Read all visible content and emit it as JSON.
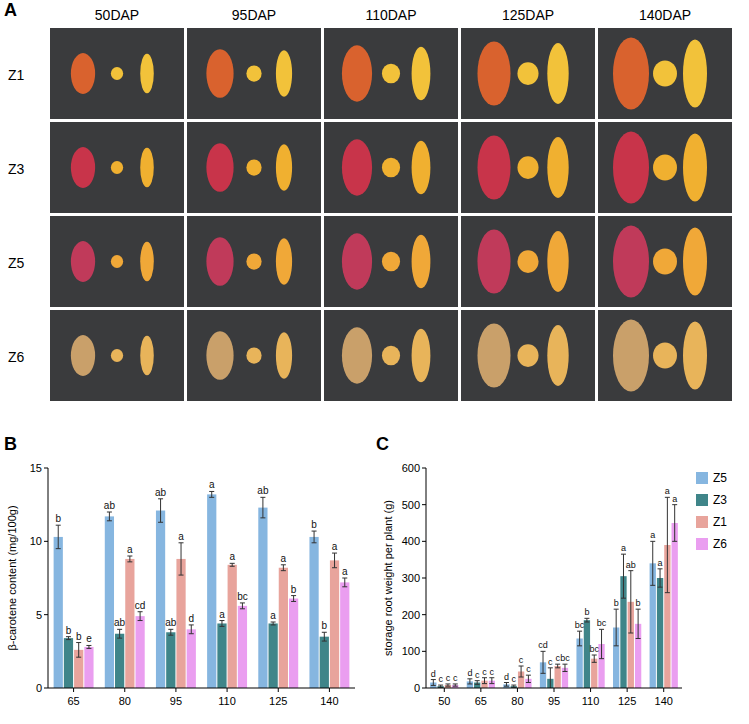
{
  "photo_grid": {
    "panel": "A",
    "columns": [
      "50DAP",
      "95DAP",
      "110DAP",
      "125DAP",
      "140DAP"
    ],
    "rows": [
      "Z1",
      "Z3",
      "Z5",
      "Z6"
    ]
  },
  "chart_data": [
    {
      "type": "bar",
      "panel": "B",
      "y_label": "β-carotene content  (mg/100g)",
      "categories": [
        "65",
        "80",
        "95",
        "110",
        "125",
        "140"
      ],
      "ylim": [
        0,
        15
      ],
      "yticks": [
        0,
        5,
        10,
        15
      ],
      "grid": false,
      "series": [
        {
          "name": "Z5",
          "color": "#86b6e0",
          "values": [
            10.3,
            11.7,
            12.1,
            13.2,
            12.3,
            10.3
          ],
          "errors": [
            0.8,
            0.3,
            0.8,
            0.2,
            0.7,
            0.4
          ],
          "letters": [
            "b",
            "ab",
            "ab",
            "a",
            "ab",
            "b"
          ]
        },
        {
          "name": "Z3",
          "color": "#3f8589",
          "values": [
            3.4,
            3.7,
            3.8,
            4.4,
            4.4,
            3.5
          ],
          "errors": [
            0.1,
            0.3,
            0.2,
            0.2,
            0.1,
            0.3
          ],
          "letters": [
            "b",
            "ab",
            "ab",
            "a",
            "a",
            "b"
          ]
        },
        {
          "name": "Z1",
          "color": "#e8a49c",
          "values": [
            2.6,
            8.8,
            8.8,
            8.4,
            8.2,
            8.7
          ],
          "errors": [
            0.5,
            0.2,
            1.1,
            0.1,
            0.2,
            0.5
          ],
          "letters": [
            "b",
            "a",
            "a",
            "a",
            "a",
            "a"
          ]
        },
        {
          "name": "Z6",
          "color": "#ea9ef0",
          "values": [
            2.8,
            4.9,
            4.0,
            5.6,
            6.1,
            7.2
          ],
          "errors": [
            0.1,
            0.3,
            0.3,
            0.2,
            0.2,
            0.3
          ],
          "letters": [
            "e",
            "cd",
            "d",
            "bc",
            "b",
            "a"
          ]
        }
      ]
    },
    {
      "type": "bar",
      "panel": "C",
      "y_label": "storage root weight per plant (g)",
      "legend": "right",
      "categories": [
        "50",
        "65",
        "80",
        "95",
        "110",
        "125",
        "140"
      ],
      "ylim": [
        0,
        600
      ],
      "yticks": [
        0,
        100,
        200,
        300,
        400,
        500,
        600
      ],
      "grid": false,
      "series": [
        {
          "name": "Z5",
          "color": "#86b6e0",
          "values": [
            15,
            18,
            10,
            70,
            135,
            165,
            340
          ],
          "errors": [
            8,
            7,
            5,
            30,
            20,
            50,
            60
          ],
          "letters": [
            "d",
            "d",
            "d",
            "cd",
            "bc",
            "b",
            "a"
          ]
        },
        {
          "name": "Z3",
          "color": "#3f8589",
          "values": [
            5,
            15,
            5,
            25,
            185,
            305,
            300
          ],
          "errors": [
            3,
            5,
            3,
            30,
            5,
            60,
            25
          ],
          "letters": [
            "c",
            "c",
            "c",
            "c",
            "b",
            "a",
            "a"
          ]
        },
        {
          "name": "Z1",
          "color": "#e8a49c",
          "values": [
            8,
            20,
            45,
            60,
            80,
            235,
            390
          ],
          "errors": [
            3,
            8,
            15,
            5,
            10,
            85,
            130
          ],
          "letters": [
            "c",
            "c",
            "c",
            "c",
            "bc",
            "ab",
            "a"
          ]
        },
        {
          "name": "Z6",
          "color": "#ea9ef0",
          "values": [
            8,
            20,
            25,
            55,
            120,
            175,
            450
          ],
          "errors": [
            3,
            8,
            10,
            10,
            40,
            40,
            50
          ],
          "letters": [
            "c",
            "c",
            "c",
            "bc",
            "bc",
            "b",
            "a"
          ]
        }
      ]
    }
  ]
}
